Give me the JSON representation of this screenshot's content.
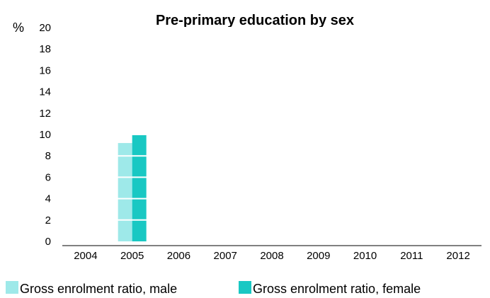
{
  "chart_data": {
    "type": "bar",
    "title": "Pre-primary education by sex",
    "ylabel": "%",
    "xlabel": "",
    "categories": [
      "2004",
      "2005",
      "2006",
      "2007",
      "2008",
      "2009",
      "2010",
      "2011",
      "2012"
    ],
    "ylim": [
      0,
      20
    ],
    "yticks": [
      "0",
      "2",
      "4",
      "6",
      "8",
      "10",
      "12",
      "14",
      "16",
      "18",
      "20"
    ],
    "grid": false,
    "legend_position": "bottom",
    "series": [
      {
        "name": "Gross enrolment ratio, male",
        "color": "#9ee9e9",
        "values": [
          null,
          9.2,
          null,
          null,
          null,
          null,
          null,
          null,
          null
        ]
      },
      {
        "name": "Gross enrolment ratio, female",
        "color": "#19c8c3",
        "values": [
          null,
          10.0,
          null,
          null,
          null,
          null,
          null,
          null,
          null
        ]
      }
    ]
  }
}
